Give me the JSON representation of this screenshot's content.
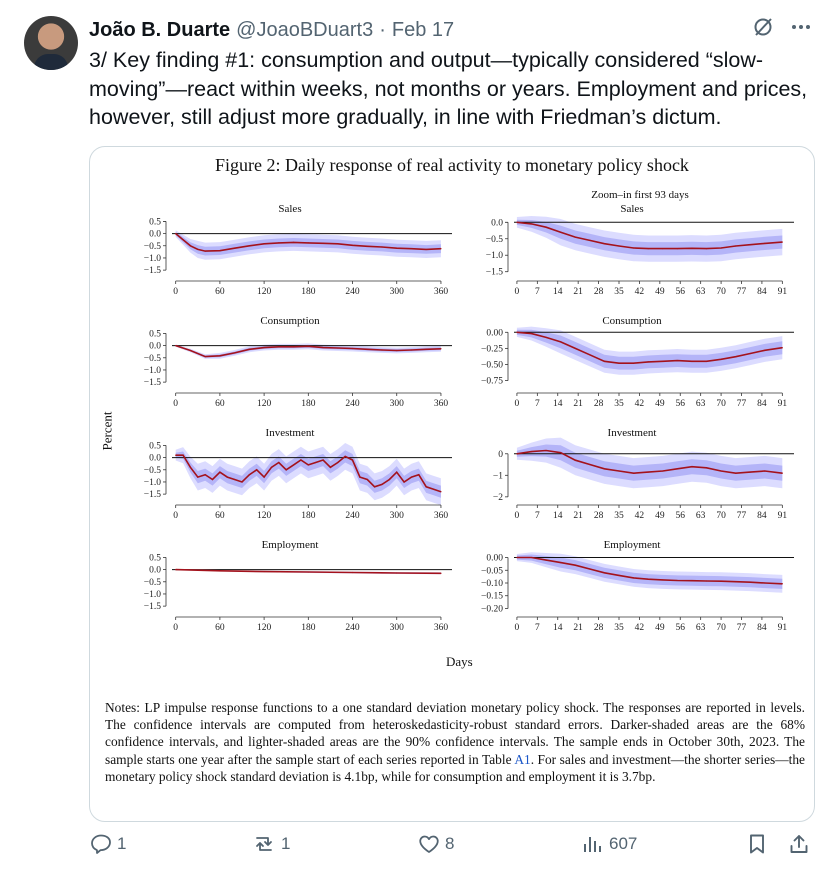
{
  "tweet": {
    "author_name": "João B. Duarte",
    "handle": "@JoaoBDuart3",
    "separator": "·",
    "date": "Feb 17",
    "text": "3/ Key finding #1: consumption and output—typically considered “slow-moving”—react within weeks, not months or years. Employment and prices, however, still adjust more gradually, in line with Friedman’s dictum."
  },
  "figure": {
    "title": "Figure 2: Daily response of real activity to monetary policy shock",
    "zoom_title": "Zoom–in first 93 days",
    "y_label": "Percent",
    "x_label": "Days",
    "notes_pre": "Notes: LP impulse response functions to a one standard deviation monetary policy shock. The responses are reported in levels. The confidence intervals are computed from heteroskedasticity-robust standard errors. Darker-shaded areas are the 68% confidence intervals, and lighter-shaded areas are the 90% confidence intervals. The sample ends in October 30th, 2023. The sample starts one year after the sample start of each series reported in Table ",
    "notes_link": "A1",
    "notes_post": ". For sales and investment—the shorter series—the monetary policy shock standard deviation is 4.1bp, while for consumption and employment it is 3.7bp."
  },
  "chart_data": [
    {
      "type": "line",
      "title": "Sales",
      "ylim": [
        -1.7,
        0.6
      ],
      "yticks": [
        0.5,
        0.0,
        -0.5,
        -1.0,
        -1.5
      ],
      "xlim": [
        -5,
        375
      ],
      "xticks": [
        0,
        60,
        120,
        180,
        240,
        300,
        360
      ],
      "x": [
        0,
        10,
        20,
        30,
        40,
        60,
        80,
        100,
        120,
        140,
        160,
        180,
        200,
        220,
        240,
        260,
        280,
        300,
        320,
        340,
        360
      ],
      "values": [
        0,
        -0.25,
        -0.5,
        -0.65,
        -0.72,
        -0.7,
        -0.6,
        -0.5,
        -0.42,
        -0.38,
        -0.36,
        -0.38,
        -0.4,
        -0.42,
        -0.48,
        -0.52,
        -0.55,
        -0.6,
        -0.62,
        -0.65,
        -0.62
      ],
      "band68": 0.18,
      "band90": 0.35
    },
    {
      "type": "line",
      "title": "Sales",
      "ylim": [
        -1.6,
        0.1
      ],
      "yticks": [
        0.0,
        -0.5,
        -1.0,
        -1.5
      ],
      "xlim": [
        -1,
        95
      ],
      "xticks": [
        0,
        7,
        14,
        21,
        28,
        35,
        42,
        49,
        56,
        63,
        70,
        77,
        84,
        91
      ],
      "x": [
        0,
        5,
        10,
        15,
        20,
        25,
        30,
        35,
        40,
        45,
        50,
        55,
        60,
        65,
        70,
        75,
        80,
        85,
        91
      ],
      "values": [
        0,
        -0.05,
        -0.15,
        -0.3,
        -0.45,
        -0.55,
        -0.65,
        -0.72,
        -0.78,
        -0.8,
        -0.8,
        -0.8,
        -0.79,
        -0.8,
        -0.78,
        -0.72,
        -0.68,
        -0.64,
        -0.6
      ],
      "band68": 0.2,
      "band90": 0.4
    },
    {
      "type": "line",
      "title": "Consumption",
      "ylim": [
        -1.7,
        0.6
      ],
      "yticks": [
        0.5,
        0.0,
        -0.5,
        -1.0,
        -1.5
      ],
      "xlim": [
        -5,
        375
      ],
      "xticks": [
        0,
        60,
        120,
        180,
        240,
        300,
        360
      ],
      "x": [
        0,
        20,
        40,
        60,
        80,
        100,
        120,
        140,
        160,
        180,
        200,
        220,
        240,
        260,
        280,
        300,
        320,
        340,
        360
      ],
      "values": [
        0,
        -0.2,
        -0.45,
        -0.42,
        -0.3,
        -0.15,
        -0.08,
        -0.05,
        -0.05,
        -0.03,
        -0.08,
        -0.1,
        -0.12,
        -0.15,
        -0.18,
        -0.2,
        -0.18,
        -0.15,
        -0.13
      ],
      "band68": 0.06,
      "band90": 0.12
    },
    {
      "type": "line",
      "title": "Consumption",
      "ylim": [
        -0.85,
        0.02
      ],
      "yticks": [
        0.0,
        -0.25,
        -0.5,
        -0.75
      ],
      "xlim": [
        -1,
        95
      ],
      "xticks": [
        0,
        7,
        14,
        21,
        28,
        35,
        42,
        49,
        56,
        63,
        70,
        77,
        84,
        91
      ],
      "x": [
        0,
        5,
        10,
        15,
        20,
        25,
        30,
        35,
        40,
        45,
        50,
        55,
        60,
        65,
        70,
        75,
        80,
        85,
        91
      ],
      "values": [
        0,
        -0.02,
        -0.08,
        -0.15,
        -0.25,
        -0.35,
        -0.45,
        -0.48,
        -0.48,
        -0.46,
        -0.45,
        -0.44,
        -0.45,
        -0.45,
        -0.42,
        -0.38,
        -0.33,
        -0.28,
        -0.24
      ],
      "band68": 0.1,
      "band90": 0.18
    },
    {
      "type": "line",
      "title": "Investment",
      "ylim": [
        -1.7,
        0.6
      ],
      "yticks": [
        0.5,
        0.0,
        -0.5,
        -1.0,
        -1.5
      ],
      "xlim": [
        -5,
        375
      ],
      "xticks": [
        0,
        60,
        120,
        180,
        240,
        300,
        360
      ],
      "x": [
        0,
        10,
        20,
        30,
        40,
        50,
        60,
        70,
        80,
        90,
        100,
        110,
        120,
        130,
        140,
        150,
        160,
        170,
        180,
        190,
        200,
        210,
        220,
        230,
        240,
        250,
        260,
        270,
        280,
        290,
        300,
        310,
        320,
        330,
        340,
        350,
        360
      ],
      "values": [
        0.1,
        0.1,
        -0.4,
        -0.8,
        -0.7,
        -0.9,
        -0.6,
        -0.8,
        -0.9,
        -1.0,
        -0.7,
        -0.5,
        -0.8,
        -0.4,
        -0.2,
        -0.5,
        -0.3,
        -0.1,
        -0.3,
        -0.2,
        -0.1,
        -0.4,
        -0.2,
        0.05,
        -0.1,
        -0.8,
        -0.9,
        -1.2,
        -1.1,
        -0.9,
        -0.6,
        -1.0,
        -0.8,
        -0.7,
        -1.2,
        -1.3,
        -1.4
      ],
      "band68": 0.25,
      "band90": 0.55
    },
    {
      "type": "line",
      "title": "Investment",
      "ylim": [
        -2.1,
        0.5
      ],
      "yticks": [
        0,
        -1,
        -2
      ],
      "xlim": [
        -1,
        95
      ],
      "xticks": [
        0,
        7,
        14,
        21,
        28,
        35,
        42,
        49,
        56,
        63,
        70,
        77,
        84,
        91
      ],
      "x": [
        0,
        5,
        10,
        15,
        20,
        25,
        30,
        35,
        40,
        45,
        50,
        55,
        60,
        65,
        70,
        75,
        80,
        85,
        91
      ],
      "values": [
        0,
        0.1,
        0.15,
        0.05,
        -0.3,
        -0.5,
        -0.7,
        -0.8,
        -0.9,
        -0.85,
        -0.8,
        -0.7,
        -0.6,
        -0.65,
        -0.8,
        -0.9,
        -0.85,
        -0.8,
        -0.9
      ],
      "band68": 0.35,
      "band90": 0.7
    },
    {
      "type": "line",
      "title": "Employment",
      "ylim": [
        -1.7,
        0.6
      ],
      "yticks": [
        0.5,
        0.0,
        -0.5,
        -1.0,
        -1.5
      ],
      "xlim": [
        -5,
        375
      ],
      "xticks": [
        0,
        60,
        120,
        180,
        240,
        300,
        360
      ],
      "x": [
        0,
        60,
        120,
        180,
        240,
        300,
        360
      ],
      "values": [
        0,
        -0.05,
        -0.08,
        -0.1,
        -0.12,
        -0.14,
        -0.15
      ],
      "band68": 0.02,
      "band90": 0.04
    },
    {
      "type": "line",
      "title": "Employment",
      "ylim": [
        -0.21,
        0.01
      ],
      "yticks": [
        0.0,
        -0.05,
        -0.1,
        -0.15,
        -0.2
      ],
      "xlim": [
        -1,
        95
      ],
      "xticks": [
        0,
        7,
        14,
        21,
        28,
        35,
        42,
        49,
        56,
        63,
        70,
        77,
        84,
        91
      ],
      "x": [
        0,
        5,
        10,
        15,
        20,
        25,
        30,
        35,
        40,
        45,
        50,
        55,
        60,
        65,
        70,
        75,
        80,
        85,
        91
      ],
      "values": [
        0,
        0,
        -0.01,
        -0.02,
        -0.03,
        -0.045,
        -0.06,
        -0.07,
        -0.08,
        -0.085,
        -0.088,
        -0.09,
        -0.091,
        -0.092,
        -0.093,
        -0.095,
        -0.097,
        -0.1,
        -0.103
      ],
      "band68": 0.02,
      "band90": 0.035
    }
  ],
  "stats": {
    "replies": "1",
    "reposts": "1",
    "likes": "8",
    "views": "607"
  },
  "icons": {
    "reply": "comment-icon",
    "repost": "repost-icon",
    "like": "heart-icon",
    "views": "analytics-icon",
    "bookmark": "bookmark-icon",
    "share": "share-icon",
    "grok": "grok-icon",
    "more": "more-icon"
  },
  "colors": {
    "line": "#a4121c",
    "band90": "#dcdcff",
    "band68": "#b4b4f8",
    "muted": "#536471",
    "link": "#1a56c8"
  }
}
